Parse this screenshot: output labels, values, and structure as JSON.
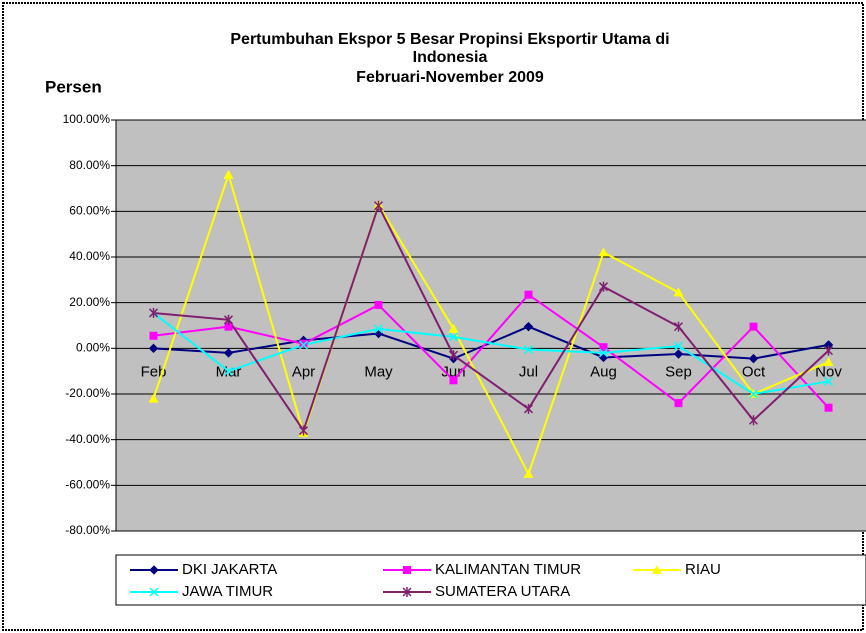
{
  "chart_data": {
    "type": "line",
    "title": [
      "Pertumbuhan Ekspor 5 Besar Propinsi Eksportir Utama di",
      "Indonesia",
      "Februari-November 2009"
    ],
    "y_label": "Persen",
    "categories": [
      "Feb",
      "Mar",
      "Apr",
      "May",
      "Jun",
      "Jul",
      "Aug",
      "Sep",
      "Oct",
      "Nov"
    ],
    "ylim": [
      -80,
      100
    ],
    "yticks": [
      {
        "value": 100,
        "label": "100.00%"
      },
      {
        "value": 80,
        "label": "80.00%"
      },
      {
        "value": 60,
        "label": "60.00%"
      },
      {
        "value": 40,
        "label": "40.00%"
      },
      {
        "value": 20,
        "label": "20.00%"
      },
      {
        "value": 0,
        "label": "0.00%"
      },
      {
        "value": -20,
        "label": "-20.00%"
      },
      {
        "value": -40,
        "label": "-40.00%"
      },
      {
        "value": -60,
        "label": "-60.00%"
      },
      {
        "value": -80,
        "label": "-80.00%"
      }
    ],
    "grid": true,
    "legend": "bottom",
    "series": [
      {
        "name": "DKI JAKARTA",
        "color": "#000080",
        "marker": "diamond",
        "values": [
          0,
          -2,
          3.5,
          6.5,
          -4.5,
          9.5,
          -4,
          -2.5,
          -4.5,
          1.5
        ]
      },
      {
        "name": "KALIMANTAN TIMUR",
        "color": "#ff00ff",
        "marker": "square",
        "values": [
          5.5,
          9.5,
          2,
          19,
          -14,
          23.5,
          0.5,
          -24,
          9.5,
          -26
        ]
      },
      {
        "name": "RIAU",
        "color": "#ffff00",
        "marker": "triangle",
        "values": [
          -22,
          76,
          -37,
          63,
          8.5,
          -55,
          42,
          24.5,
          -20,
          -6
        ]
      },
      {
        "name": "JAWA TIMUR",
        "color": "#00ffff",
        "marker": "x",
        "values": [
          15.5,
          -10,
          1.5,
          8.5,
          5,
          -0.5,
          -2,
          1,
          -20,
          -14.5
        ]
      },
      {
        "name": "SUMATERA UTARA",
        "color": "#7f1f6f",
        "marker": "star",
        "values": [
          15.5,
          12.5,
          -36,
          62.5,
          -3,
          -26.5,
          27,
          9.5,
          -31.5,
          -1
        ]
      }
    ]
  }
}
